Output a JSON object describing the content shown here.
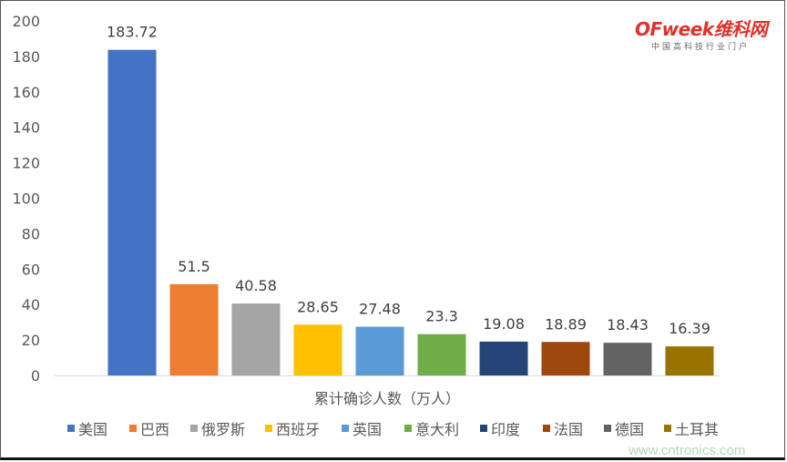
{
  "chart_data": {
    "type": "bar",
    "xlabel": "累计确诊人数（万人）",
    "ylabel": "",
    "ylim": [
      0,
      200
    ],
    "yticks": [
      0,
      20,
      40,
      60,
      80,
      100,
      120,
      140,
      160,
      180,
      200
    ],
    "grid": false,
    "legend": "bottom",
    "series": [
      {
        "name": "美国",
        "value": 183.72,
        "label": "183.72",
        "color": "#4472C4"
      },
      {
        "name": "巴西",
        "value": 51.5,
        "label": "51.5",
        "color": "#ED7D31"
      },
      {
        "name": "俄罗斯",
        "value": 40.58,
        "label": "40.58",
        "color": "#A5A5A5"
      },
      {
        "name": "西班牙",
        "value": 28.65,
        "label": "28.65",
        "color": "#FFC000"
      },
      {
        "name": "英国",
        "value": 27.48,
        "label": "27.48",
        "color": "#5B9BD5"
      },
      {
        "name": "意大利",
        "value": 23.3,
        "label": "23.3",
        "color": "#70AD47"
      },
      {
        "name": "印度",
        "value": 19.08,
        "label": "19.08",
        "color": "#264478"
      },
      {
        "name": "法国",
        "value": 18.89,
        "label": "18.89",
        "color": "#9E480E"
      },
      {
        "name": "德国",
        "value": 18.43,
        "label": "18.43",
        "color": "#636363"
      },
      {
        "name": "土耳其",
        "value": 16.39,
        "label": "16.39",
        "color": "#997300"
      }
    ]
  },
  "logo": {
    "main": "OFweek维科网",
    "sub": "中国高科技行业门户"
  },
  "watermark": "www.cntronics.com"
}
